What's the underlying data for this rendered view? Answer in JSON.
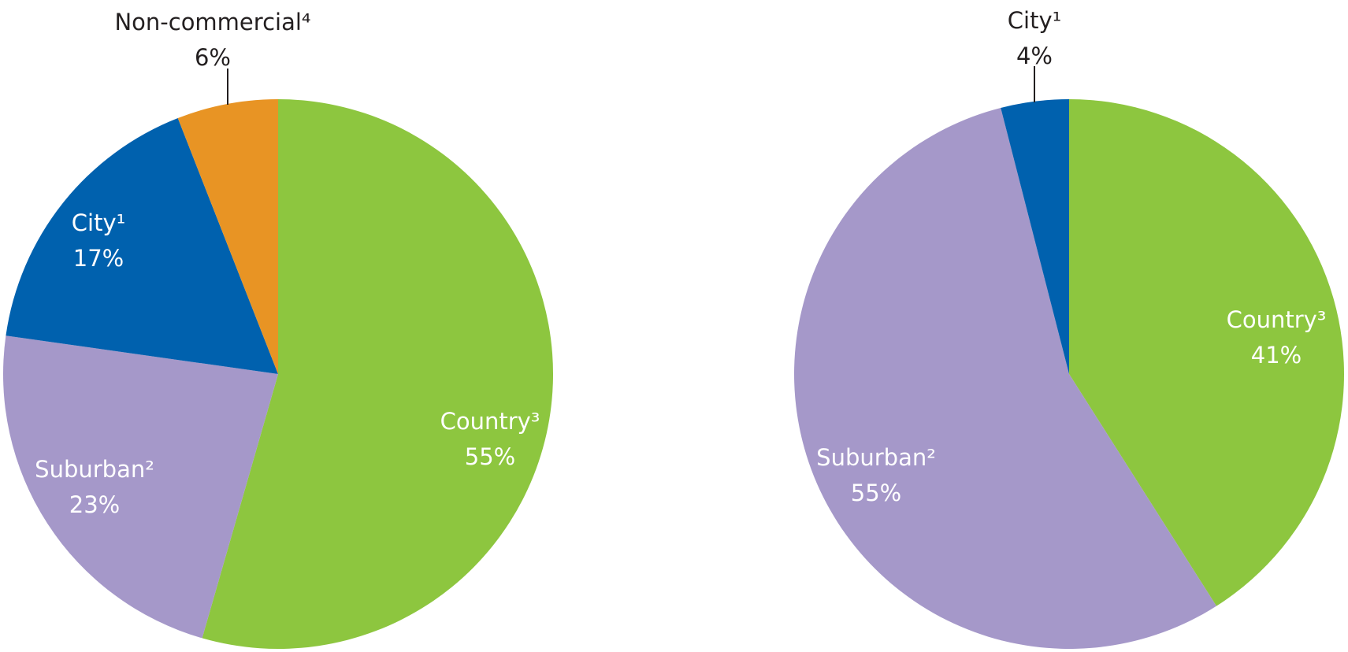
{
  "chart_data": [
    {
      "type": "pie",
      "slices": [
        {
          "label": "Country³",
          "value": 55,
          "value_label": "55%",
          "color": "#8dc63f"
        },
        {
          "label": "Suburban²",
          "value": 23,
          "value_label": "23%",
          "color": "#a598c9"
        },
        {
          "label": "City¹",
          "value": 17,
          "value_label": "17%",
          "color": "#0061ae"
        },
        {
          "label": "Non-commercial⁴",
          "value": 6,
          "value_label": "6%",
          "color": "#e89424"
        }
      ]
    },
    {
      "type": "pie",
      "slices": [
        {
          "label": "Country³",
          "value": 41,
          "value_label": "41%",
          "color": "#8dc63f"
        },
        {
          "label": "Suburban²",
          "value": 55,
          "value_label": "55%",
          "color": "#a598c9"
        },
        {
          "label": "City¹",
          "value": 4,
          "value_label": "4%",
          "color": "#0061ae"
        }
      ]
    }
  ]
}
